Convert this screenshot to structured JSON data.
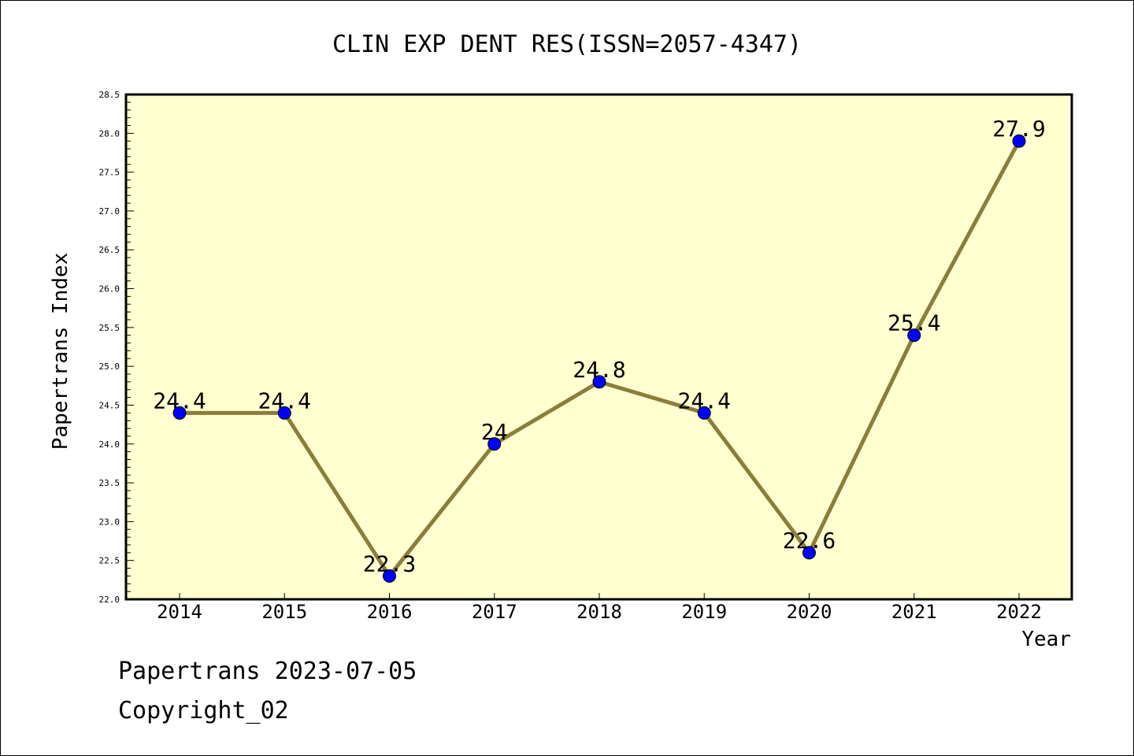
{
  "chart_data": {
    "type": "line",
    "title": "CLIN EXP DENT RES(ISSN=2057-4347)",
    "xlabel": "Year",
    "ylabel": "Papertrans Index",
    "categories": [
      "2014",
      "2015",
      "2016",
      "2017",
      "2018",
      "2019",
      "2020",
      "2021",
      "2022"
    ],
    "values": [
      24.4,
      24.4,
      22.3,
      24.0,
      24.8,
      24.4,
      22.6,
      25.4,
      27.9
    ],
    "data_labels": [
      "24.4",
      "24.4",
      "22.3",
      "24",
      "24.8",
      "24.4",
      "22.6",
      "25.4",
      "27.9"
    ],
    "ylim": [
      22.0,
      28.5
    ],
    "yticks": [
      "22.0",
      "22.5",
      "23.0",
      "23.5",
      "24.0",
      "24.5",
      "25.0",
      "25.5",
      "26.0",
      "26.5",
      "27.0",
      "27.5",
      "28.0",
      "28.5"
    ],
    "grid": false,
    "legend": "none",
    "colors": {
      "plot_background": "#ffffd0",
      "line": "#8b7d3a",
      "marker": "#0000ff"
    }
  },
  "footer": {
    "line1": "Papertrans 2023-07-05",
    "line2": "Copyright_02"
  }
}
